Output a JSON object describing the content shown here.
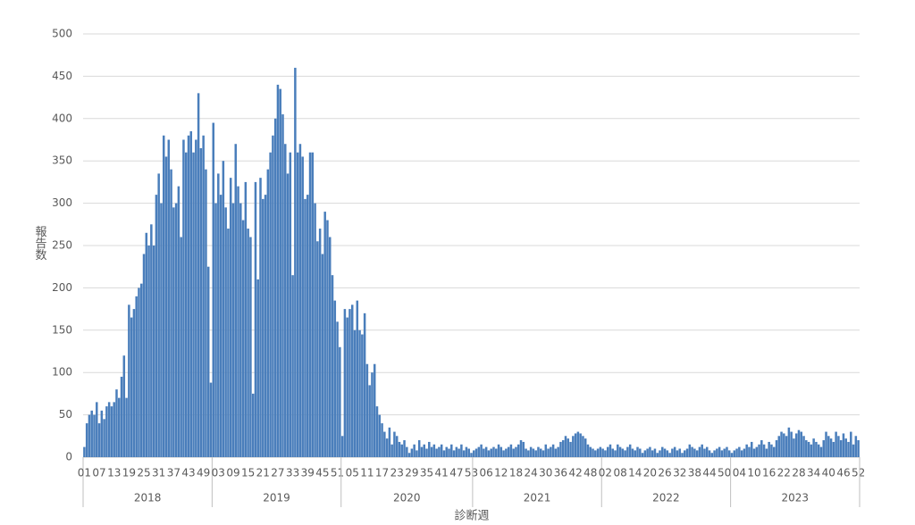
{
  "chart_data": {
    "type": "bar",
    "y_axis_label": "報告数",
    "x_axis_label": "診断週",
    "color": "#4a7ebb",
    "ylim": [
      0,
      500
    ],
    "yticks": [
      0,
      50,
      100,
      150,
      200,
      250,
      300,
      350,
      400,
      450,
      500
    ],
    "grid": true,
    "groups": [
      {
        "name": "2018",
        "categories": [
          "01",
          null,
          null,
          null,
          null,
          null,
          "07",
          null,
          null,
          null,
          null,
          null,
          "13",
          null,
          null,
          null,
          null,
          null,
          "19",
          null,
          null,
          null,
          null,
          null,
          "25",
          null,
          null,
          null,
          null,
          null,
          "31",
          null,
          null,
          null,
          null,
          null,
          "37",
          null,
          null,
          null,
          null,
          null,
          "43",
          null,
          null,
          null,
          null,
          null,
          "49",
          null,
          null,
          null
        ],
        "values": [
          12,
          40,
          50,
          55,
          50,
          65,
          40,
          55,
          45,
          60,
          65,
          60,
          65,
          80,
          70,
          95,
          120,
          70,
          180,
          165,
          175,
          190,
          200,
          205,
          240,
          265,
          250,
          275,
          250,
          310,
          335,
          300,
          380,
          355,
          375,
          340,
          295,
          300,
          320,
          260,
          375,
          360,
          380,
          385,
          360,
          375,
          430,
          365,
          380,
          340,
          225,
          88
        ]
      },
      {
        "name": "2019",
        "categories": [
          null,
          null,
          "03",
          null,
          null,
          null,
          null,
          null,
          "09",
          null,
          null,
          null,
          null,
          null,
          "15",
          null,
          null,
          null,
          null,
          null,
          "21",
          null,
          null,
          null,
          null,
          null,
          "27",
          null,
          null,
          null,
          null,
          null,
          "33",
          null,
          null,
          null,
          null,
          null,
          "39",
          null,
          null,
          null,
          null,
          null,
          "45",
          null,
          null,
          null,
          null,
          null,
          "51",
          null
        ],
        "values": [
          395,
          300,
          335,
          310,
          350,
          295,
          270,
          330,
          300,
          370,
          320,
          300,
          280,
          325,
          270,
          260,
          75,
          325,
          210,
          330,
          305,
          310,
          340,
          360,
          380,
          400,
          440,
          435,
          405,
          370,
          335,
          360,
          215,
          460,
          360,
          370,
          355,
          305,
          310,
          360,
          360,
          300,
          255,
          270,
          240,
          290,
          280,
          260,
          215,
          185,
          160,
          130
        ]
      },
      {
        "name": "2020",
        "categories": [
          null,
          null,
          null,
          null,
          "05",
          null,
          null,
          null,
          null,
          null,
          "11",
          null,
          null,
          null,
          null,
          null,
          "17",
          null,
          null,
          null,
          null,
          null,
          "23",
          null,
          null,
          null,
          null,
          null,
          "29",
          null,
          null,
          null,
          null,
          null,
          "35",
          null,
          null,
          null,
          null,
          null,
          "41",
          null,
          null,
          null,
          null,
          null,
          "47",
          null,
          null,
          null,
          null,
          null,
          "53"
        ],
        "values": [
          25,
          175,
          165,
          175,
          180,
          150,
          185,
          150,
          145,
          170,
          110,
          85,
          100,
          110,
          60,
          50,
          40,
          30,
          22,
          35,
          15,
          30,
          25,
          18,
          15,
          20,
          12,
          5,
          10,
          15,
          8,
          20,
          12,
          15,
          10,
          18,
          12,
          15,
          10,
          12,
          15,
          8,
          12,
          10,
          15,
          8,
          12,
          10,
          15,
          8,
          12,
          10,
          5
        ]
      },
      {
        "name": "2021",
        "categories": [
          null,
          null,
          null,
          null,
          null,
          "06",
          null,
          null,
          null,
          null,
          null,
          "12",
          null,
          null,
          null,
          null,
          null,
          "18",
          null,
          null,
          null,
          null,
          null,
          "24",
          null,
          null,
          null,
          null,
          null,
          "30",
          null,
          null,
          null,
          null,
          null,
          "36",
          null,
          null,
          null,
          null,
          null,
          "42",
          null,
          null,
          null,
          null,
          null,
          "48",
          null,
          null,
          null,
          null
        ],
        "values": [
          8,
          10,
          12,
          15,
          10,
          12,
          8,
          10,
          12,
          10,
          15,
          12,
          8,
          10,
          12,
          15,
          10,
          12,
          15,
          20,
          18,
          10,
          8,
          12,
          10,
          8,
          12,
          10,
          8,
          15,
          10,
          12,
          15,
          10,
          12,
          18,
          20,
          25,
          22,
          18,
          25,
          28,
          30,
          28,
          25,
          22,
          15,
          12,
          10,
          8,
          10,
          12
        ]
      },
      {
        "name": "2022",
        "categories": [
          null,
          "02",
          null,
          null,
          null,
          null,
          null,
          "08",
          null,
          null,
          null,
          null,
          null,
          "14",
          null,
          null,
          null,
          null,
          null,
          "20",
          null,
          null,
          null,
          null,
          null,
          "26",
          null,
          null,
          null,
          null,
          null,
          "32",
          null,
          null,
          null,
          null,
          null,
          "38",
          null,
          null,
          null,
          null,
          null,
          "44",
          null,
          null,
          null,
          null,
          null,
          "50",
          null,
          null
        ],
        "values": [
          10,
          8,
          12,
          15,
          10,
          8,
          15,
          12,
          10,
          8,
          12,
          15,
          10,
          8,
          12,
          10,
          5,
          8,
          10,
          12,
          8,
          10,
          5,
          8,
          12,
          10,
          8,
          5,
          10,
          12,
          8,
          10,
          5,
          8,
          10,
          15,
          12,
          10,
          8,
          12,
          15,
          10,
          12,
          8,
          5,
          8,
          10,
          12,
          8,
          10,
          12,
          8
        ]
      },
      {
        "name": "2023",
        "categories": [
          null,
          null,
          null,
          "04",
          null,
          null,
          null,
          null,
          null,
          "10",
          null,
          null,
          null,
          null,
          null,
          "16",
          null,
          null,
          null,
          null,
          null,
          "22",
          null,
          null,
          null,
          null,
          null,
          "28",
          null,
          null,
          null,
          null,
          null,
          "34",
          null,
          null,
          null,
          null,
          null,
          "40",
          null,
          null,
          null,
          null,
          null,
          "46",
          null,
          null,
          null,
          null,
          null,
          "52"
        ],
        "values": [
          5,
          8,
          10,
          12,
          8,
          10,
          15,
          12,
          18,
          10,
          12,
          15,
          20,
          15,
          10,
          18,
          15,
          12,
          20,
          25,
          30,
          28,
          25,
          35,
          30,
          22,
          28,
          32,
          30,
          25,
          20,
          18,
          15,
          22,
          18,
          15,
          12,
          20,
          30,
          25,
          22,
          18,
          30,
          25,
          20,
          28,
          22,
          18,
          30,
          15,
          25,
          20
        ]
      }
    ]
  }
}
